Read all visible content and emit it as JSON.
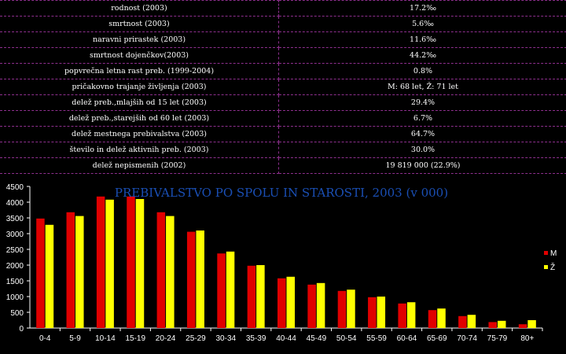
{
  "colors": {
    "background": "#000000",
    "table_border": "#8e2f8e",
    "series_m": "#e00000",
    "series_z": "#ffff00",
    "title": "#1a4fb5",
    "axis_text": "#ffffff"
  },
  "table": {
    "rows": [
      {
        "label": "rodnost (2003)",
        "value": "17.2‰"
      },
      {
        "label": "smrtnost (2003)",
        "value": "5.6‰"
      },
      {
        "label": "naravni prirastek (2003)",
        "value": "11.6‰"
      },
      {
        "label": "smrtnost dojenčkov(2003)",
        "value": "44.2‰"
      },
      {
        "label": "popvrečna letna rast preb. (1999-2004)",
        "value": "0.8%"
      },
      {
        "label": "pričakovno trajanje življenja (2003)",
        "value": "M: 68 let, Ž: 71 let"
      },
      {
        "label": "delež preb.,mlajših od 15 let (2003)",
        "value": "29.4%"
      },
      {
        "label": "delež preb.,starejših od 60 let (2003)",
        "value": "6.7%"
      },
      {
        "label": "delež mestnega prebivalstva (2003)",
        "value": "64.7%"
      },
      {
        "label": "število in delež aktivnih preb. (2003)",
        "value": "30.0%"
      },
      {
        "label": "delež nepismenih (2002)",
        "value": "19 819 000 (22.9%)"
      }
    ]
  },
  "chart_data": {
    "type": "bar",
    "title": "PREBIVALSTVO PO SPOLU IN STAROSTI, 2003 (v 000)",
    "xlabel": "",
    "ylabel": "",
    "ylim": [
      0,
      4500
    ],
    "yticks": [
      0,
      500,
      1000,
      1500,
      2000,
      2500,
      3000,
      3500,
      4000,
      4500
    ],
    "grid": false,
    "legend_position": "right",
    "categories": [
      "0-4",
      "5-9",
      "10-14",
      "15-19",
      "20-24",
      "25-29",
      "30-34",
      "35-39",
      "40-44",
      "45-49",
      "50-54",
      "55-59",
      "60-64",
      "65-69",
      "70-74",
      "75-79",
      "80+"
    ],
    "series": [
      {
        "name": "M",
        "color": "#e00000",
        "values": [
          3480,
          3680,
          4180,
          4180,
          3680,
          3060,
          2370,
          1980,
          1580,
          1380,
          1180,
          980,
          780,
          570,
          380,
          190,
          120
        ]
      },
      {
        "name": "Ž",
        "color": "#ffff00",
        "values": [
          3280,
          3560,
          4080,
          4100,
          3560,
          3100,
          2430,
          2000,
          1630,
          1430,
          1220,
          1000,
          820,
          620,
          420,
          230,
          250
        ]
      }
    ]
  }
}
